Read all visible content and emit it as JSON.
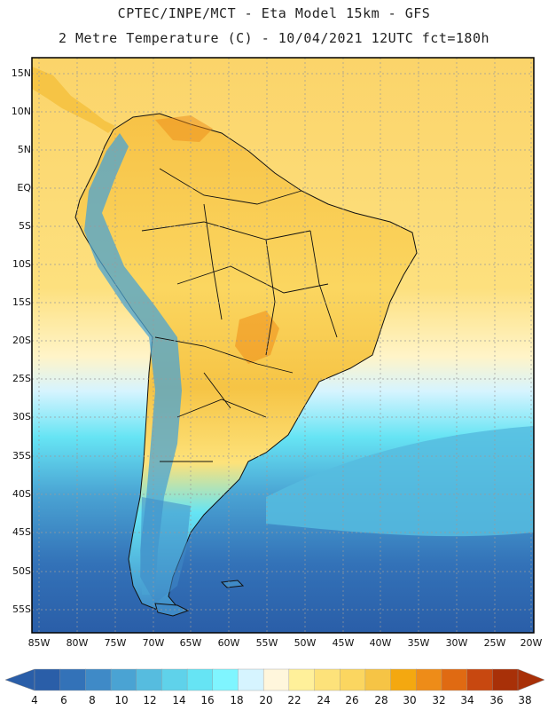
{
  "header": {
    "line1": "CPTEC/INPE/MCT -  Eta Model 15km - GFS",
    "line2": "2 Metre Temperature (C) - 10/04/2021 12UTC fct=180h"
  },
  "map": {
    "lat_labels": [
      "15N",
      "10N",
      "5N",
      "EQ",
      "5S",
      "10S",
      "15S",
      "20S",
      "25S",
      "30S",
      "35S",
      "40S",
      "45S",
      "50S",
      "55S"
    ],
    "lon_labels": [
      "85W",
      "80W",
      "75W",
      "70W",
      "65W",
      "60W",
      "55W",
      "50W",
      "45W",
      "40W",
      "35W",
      "30W",
      "25W",
      "20W"
    ]
  },
  "colorbar": {
    "labels": [
      "4",
      "6",
      "8",
      "10",
      "12",
      "14",
      "16",
      "18",
      "20",
      "22",
      "24",
      "26",
      "28",
      "30",
      "32",
      "34",
      "36",
      "38"
    ],
    "colors": [
      "#2a5ea8",
      "#3372b8",
      "#3f8ac7",
      "#4aa3d3",
      "#56bcdf",
      "#5fd2ea",
      "#66e4f4",
      "#7ff5ff",
      "#d6f4ff",
      "#fff6dc",
      "#fff09a",
      "#fde27a",
      "#fbd660",
      "#f6c445",
      "#f4a810",
      "#ee8c18",
      "#e06a12",
      "#c84810",
      "#a83008"
    ],
    "left_color": "#2a5ea8",
    "right_color": "#a83008"
  }
}
